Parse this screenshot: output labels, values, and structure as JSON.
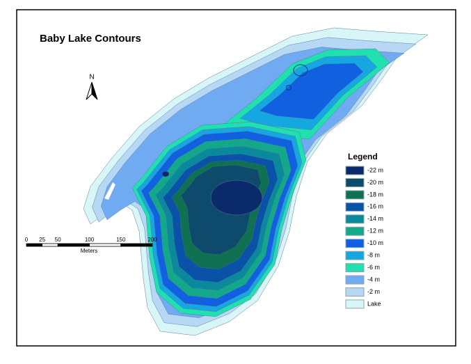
{
  "title": "Baby Lake Contours",
  "north": "N",
  "scale_bar": {
    "ticks": [
      0,
      25,
      50,
      100,
      150,
      200
    ],
    "unit": "Meters"
  },
  "legend": {
    "title": "Legend",
    "items": [
      {
        "label": "-22 m",
        "color": "#0b2a6c"
      },
      {
        "label": "-20 m",
        "color": "#0d4a6b"
      },
      {
        "label": "-18 m",
        "color": "#0f7052"
      },
      {
        "label": "-16 m",
        "color": "#0a52a8"
      },
      {
        "label": "-14 m",
        "color": "#0a889c"
      },
      {
        "label": "-12 m",
        "color": "#14a88a"
      },
      {
        "label": "-10 m",
        "color": "#1060e0"
      },
      {
        "label": "-8 m",
        "color": "#16a6e0"
      },
      {
        "label": "-6 m",
        "color": "#20e0b0"
      },
      {
        "label": "-4 m",
        "color": "#70aaf0"
      },
      {
        "label": "-2 m",
        "color": "#b6d8f4"
      },
      {
        "label": "Lake",
        "color": "#d8f6f8"
      }
    ]
  }
}
